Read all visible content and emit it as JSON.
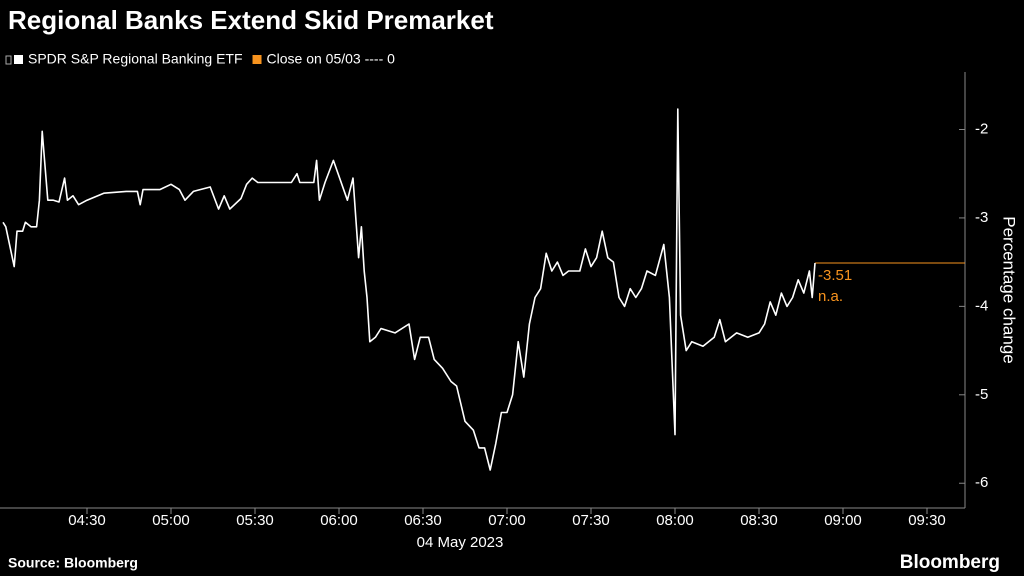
{
  "chart_data": {
    "type": "line",
    "title": "Regional Banks Extend Skid Premarket",
    "ylabel": "Percentage change",
    "xlabel": "04 May 2023",
    "source": "Source: Bloomberg",
    "brand": "Bloomberg",
    "x": [
      "04:00",
      "04:01",
      "04:04",
      "04:05",
      "04:07",
      "04:08",
      "04:10",
      "04:12",
      "04:13",
      "04:14",
      "04:16",
      "04:18",
      "04:20",
      "04:22",
      "04:23",
      "04:25",
      "04:27",
      "04:30",
      "04:36",
      "04:44",
      "04:48",
      "04:49",
      "04:50",
      "04:56",
      "05:00",
      "05:03",
      "05:05",
      "05:08",
      "05:14",
      "05:17",
      "05:19",
      "05:21",
      "05:25",
      "05:27",
      "05:29",
      "05:31",
      "05:37",
      "05:43",
      "05:45",
      "05:46",
      "05:51",
      "05:52",
      "05:53",
      "05:55",
      "05:58",
      "06:03",
      "06:05",
      "06:06",
      "06:07",
      "06:08",
      "06:09",
      "06:10",
      "06:11",
      "06:13",
      "06:15",
      "06:20",
      "06:25",
      "06:27",
      "06:29",
      "06:32",
      "06:34",
      "06:37",
      "06:40",
      "06:42",
      "06:45",
      "06:48",
      "06:50",
      "06:52",
      "06:54",
      "06:56",
      "06:58",
      "07:00",
      "07:02",
      "07:04",
      "07:06",
      "07:08",
      "07:10",
      "07:12",
      "07:14",
      "07:16",
      "07:18",
      "07:20",
      "07:22",
      "07:26",
      "07:28",
      "07:30",
      "07:32",
      "07:34",
      "07:36",
      "07:38",
      "07:40",
      "07:42",
      "07:44",
      "07:46",
      "07:48",
      "07:50",
      "07:53",
      "07:56",
      "07:58",
      "08:00",
      "08:01",
      "08:02",
      "08:04",
      "08:06",
      "08:10",
      "08:14",
      "08:16",
      "08:18",
      "08:22",
      "08:26",
      "08:30",
      "08:32",
      "08:34",
      "08:36",
      "08:38",
      "08:40",
      "08:42",
      "08:44",
      "08:46",
      "08:48",
      "08:49",
      "08:50"
    ],
    "series": [
      {
        "name": "SPDR S&P Regional Banking ETF",
        "color": "#ffffff",
        "values": [
          -3.05,
          -3.1,
          -3.55,
          -3.15,
          -3.15,
          -3.05,
          -3.1,
          -3.1,
          -2.8,
          -2.02,
          -2.8,
          -2.8,
          -2.82,
          -2.55,
          -2.8,
          -2.75,
          -2.85,
          -2.8,
          -2.72,
          -2.7,
          -2.7,
          -2.85,
          -2.68,
          -2.68,
          -2.62,
          -2.68,
          -2.8,
          -2.7,
          -2.65,
          -2.9,
          -2.75,
          -2.9,
          -2.78,
          -2.62,
          -2.55,
          -2.6,
          -2.6,
          -2.6,
          -2.5,
          -2.6,
          -2.6,
          -2.35,
          -2.8,
          -2.6,
          -2.35,
          -2.8,
          -2.55,
          -3.0,
          -3.45,
          -3.1,
          -3.6,
          -3.9,
          -4.4,
          -4.35,
          -4.25,
          -4.3,
          -4.2,
          -4.6,
          -4.35,
          -4.35,
          -4.6,
          -4.7,
          -4.85,
          -4.9,
          -5.3,
          -5.4,
          -5.6,
          -5.6,
          -5.85,
          -5.55,
          -5.2,
          -5.2,
          -5.0,
          -4.4,
          -4.8,
          -4.2,
          -3.9,
          -3.8,
          -3.4,
          -3.6,
          -3.5,
          -3.65,
          -3.6,
          -3.6,
          -3.35,
          -3.55,
          -3.45,
          -3.15,
          -3.45,
          -3.5,
          -3.9,
          -4.0,
          -3.8,
          -3.9,
          -3.8,
          -3.6,
          -3.65,
          -3.3,
          -3.9,
          -5.45,
          -1.77,
          -4.1,
          -4.5,
          -4.4,
          -4.45,
          -4.35,
          -4.15,
          -4.4,
          -4.3,
          -4.35,
          -4.3,
          -4.2,
          -3.95,
          -4.1,
          -3.85,
          -4.0,
          -3.9,
          -3.7,
          -3.85,
          -3.6,
          -3.9,
          -3.51
        ]
      }
    ],
    "reference": {
      "name": "Close on 05/03 ---- 0",
      "color": "#f7931e"
    },
    "annotations": [
      {
        "value": -3.51,
        "label": "-3.51"
      },
      {
        "label": "n.a."
      }
    ],
    "xlim": [
      "04:00",
      "09:45"
    ],
    "xticks": [
      "04:30",
      "05:00",
      "05:30",
      "06:00",
      "06:30",
      "07:00",
      "07:30",
      "08:00",
      "08:30",
      "09:00",
      "09:30"
    ],
    "ylim": [
      -6.28,
      -1.35
    ],
    "yticks": [
      -2,
      -3,
      -4,
      -5,
      -6
    ]
  }
}
